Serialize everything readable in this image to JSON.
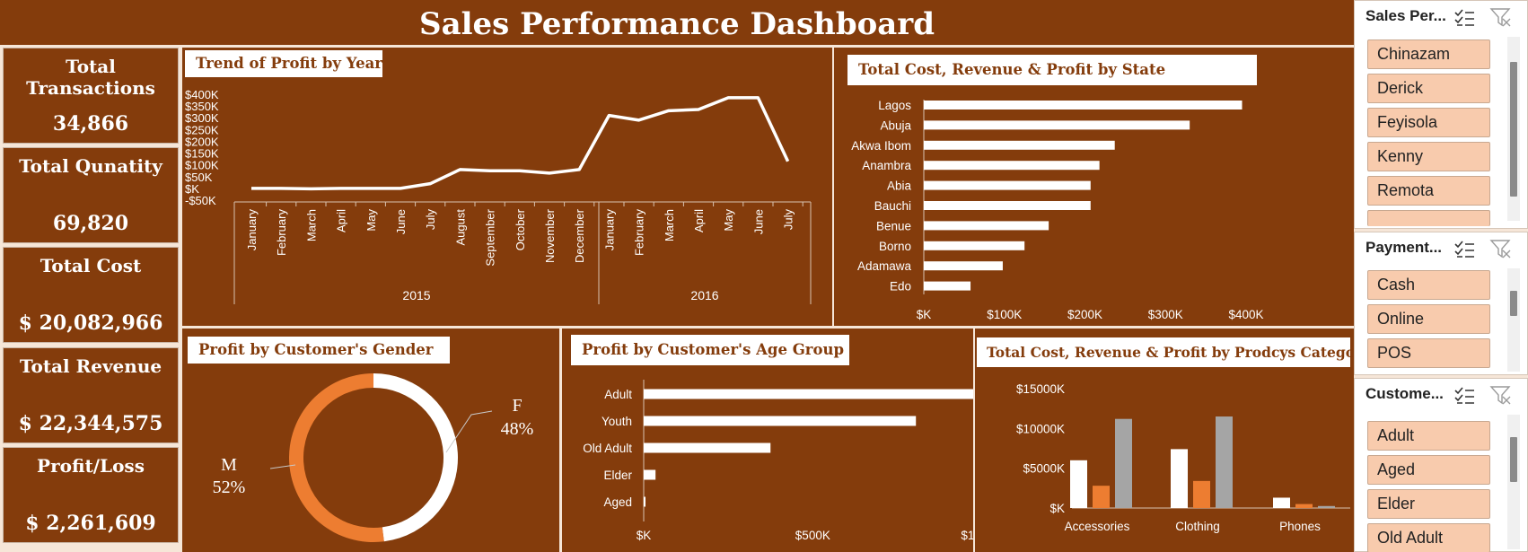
{
  "dashboard": {
    "title": "Sales Performance Dashboard"
  },
  "kpis": {
    "transactions": {
      "label": "Total Transactions",
      "value": "34,866"
    },
    "quantity": {
      "label": "Total Qunatity",
      "value": "69,820"
    },
    "cost": {
      "label": "Total Cost",
      "value": "$ 20,082,966"
    },
    "revenue": {
      "label": "Total Revenue",
      "value": "$ 22,344,575"
    },
    "profit": {
      "label": "Profit/Loss",
      "value": "$ 2,261,609"
    }
  },
  "colors": {
    "background": "#843c0c",
    "accent_orange": "#ed7d31",
    "white": "#ffffff",
    "gray": "#a5a5a5",
    "slicer_item": "#f8cbad"
  },
  "chart_data": [
    {
      "id": "trend",
      "type": "line",
      "title": "Trend of Profit by Year",
      "x": [
        "January",
        "February",
        "March",
        "April",
        "May",
        "June",
        "July",
        "August",
        "September",
        "October",
        "November",
        "December",
        "January",
        "February",
        "March",
        "April",
        "May",
        "June",
        "July"
      ],
      "groups": [
        {
          "label": "2015",
          "count": 12
        },
        {
          "label": "2016",
          "count": 7
        }
      ],
      "values": [
        0,
        0,
        -2,
        0,
        0,
        0,
        20,
        80,
        75,
        75,
        65,
        80,
        310,
        290,
        330,
        335,
        385,
        385,
        115
      ],
      "yticks": [
        "$400K",
        "$350K",
        "$300K",
        "$250K",
        "$200K",
        "$150K",
        "$100K",
        "$50K",
        "$K",
        "-$50K"
      ],
      "ylim": [
        -50,
        400
      ]
    },
    {
      "id": "state",
      "type": "bar",
      "title": "Total Cost, Revenue & Profit by State",
      "categories": [
        "Lagos",
        "Abuja",
        "Akwa Ibom",
        "Anambra",
        "Abia",
        "Bauchi",
        "Benue",
        "Borno",
        "Adamawa",
        "Edo"
      ],
      "values": [
        395,
        330,
        237,
        218,
        207,
        207,
        155,
        125,
        98,
        58
      ],
      "xticks": [
        "$K",
        "$100K",
        "$200K",
        "$300K",
        "$400K"
      ],
      "xlim": [
        0,
        400
      ]
    },
    {
      "id": "gender",
      "type": "pie",
      "title": "Profit by Customer's Gender",
      "slices": [
        {
          "label": "F",
          "pct": "48%",
          "value": 48,
          "color": "#ffffff"
        },
        {
          "label": "M",
          "pct": "52%",
          "value": 52,
          "color": "#ed7d31"
        }
      ]
    },
    {
      "id": "age",
      "type": "bar",
      "title": "Profit by Customer's Age Group",
      "categories": [
        "Adult",
        "Youth",
        "Old Adult",
        "Elder",
        "Aged"
      ],
      "values": [
        1030,
        805,
        375,
        35,
        5
      ],
      "xticks": [
        "$K",
        "$500K",
        "$1000K",
        "$1500K"
      ],
      "xlim": [
        0,
        1500
      ]
    },
    {
      "id": "category",
      "type": "bar",
      "title": "Total Cost, Revenue & Profit by Prodcys Category",
      "categories": [
        "Accessories",
        "Clothing",
        "Phones"
      ],
      "series": [
        {
          "values": [
            6000,
            7400,
            1300
          ],
          "color": "#ffffff"
        },
        {
          "values": [
            2800,
            3400,
            500
          ],
          "color": "#ed7d31"
        },
        {
          "values": [
            11200,
            11500,
            250
          ],
          "color": "#a5a5a5"
        }
      ],
      "yticks": [
        "$15000K",
        "$10000K",
        "$5000K",
        "$K"
      ],
      "ylim": [
        0,
        15000
      ]
    }
  ],
  "slicers": [
    {
      "title": "Sales Per...",
      "items": [
        "Chinazam",
        "Derick",
        "Feyisola",
        "Kenny",
        "Remota"
      ]
    },
    {
      "title": "Payment...",
      "items": [
        "Cash",
        "Online",
        "POS"
      ]
    },
    {
      "title": "Custome...",
      "items": [
        "Adult",
        "Aged",
        "Elder",
        "Old Adult"
      ]
    }
  ]
}
